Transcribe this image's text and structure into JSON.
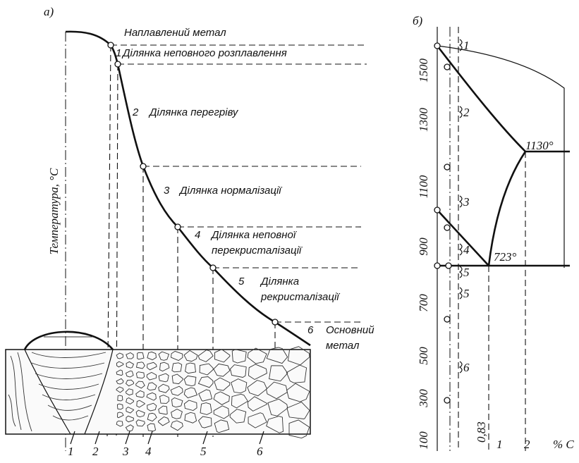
{
  "left": {
    "panel_label": "а)",
    "axis_label": "Температура, °C",
    "top_label": "Наплавлений метал",
    "zones": [
      {
        "number": "1",
        "lines": [
          "Ділянка неповного розплавлення"
        ]
      },
      {
        "number": "2",
        "lines": [
          "Ділянка перегріву"
        ]
      },
      {
        "number": "3",
        "lines": [
          "Ділянка нормалізації"
        ]
      },
      {
        "number": "4",
        "lines": [
          "Ділянка неповної",
          "перекристалізації"
        ]
      },
      {
        "number": "5",
        "lines": [
          "Ділянка",
          "рекристалізації"
        ]
      },
      {
        "number": "6",
        "lines": [
          "Основний",
          "метал"
        ]
      }
    ],
    "bottom_numbers": [
      "1",
      "2",
      "3",
      "4",
      "5",
      "6"
    ]
  },
  "right": {
    "panel_label": "б)",
    "temperature_ticks": [
      "100",
      "300",
      "500",
      "700",
      "900",
      "1100",
      "1300",
      "1500"
    ],
    "carbon_ticks": [
      "1",
      "2"
    ],
    "carbon_unit": "% C",
    "eutectoid_carbon": "0,83",
    "eutectic_temp": "1130°",
    "eutectoid_temp": "723°",
    "zone_numbers": [
      "1",
      "2",
      "3",
      "4",
      "5",
      "5",
      "6"
    ]
  }
}
